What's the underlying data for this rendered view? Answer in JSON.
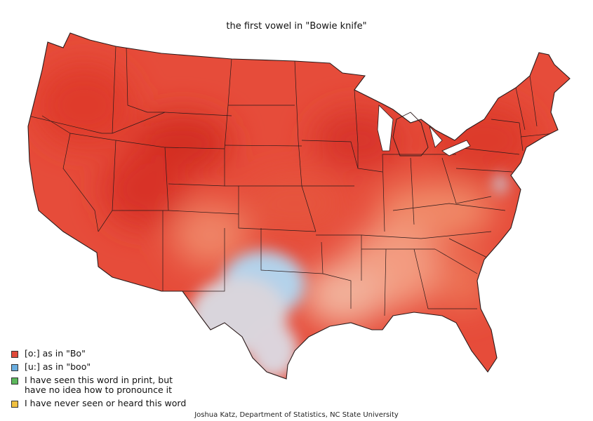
{
  "title": "the first vowel in \"Bowie knife\"",
  "legend": [
    {
      "label": "[o:] as in \"Bo\"",
      "color": "#e04a3a"
    },
    {
      "label": "[u:] as in \"boo\"",
      "color": "#6aaee0"
    },
    {
      "label": "I have seen this word in print, but\nhave no idea how to pronounce it",
      "color": "#5cb85c"
    },
    {
      "label": "I have never seen or heard this word",
      "color": "#f0c040"
    }
  ],
  "credit": "Joshua Katz, Department of Statistics, NC State University",
  "colors": {
    "strong_o": "#d93328",
    "mid_o": "#eb6a4e",
    "light_o": "#f3a488",
    "neutral": "#e2d6d6",
    "u_blue": "#a9cbe6",
    "border": "#2a1a1a"
  }
}
